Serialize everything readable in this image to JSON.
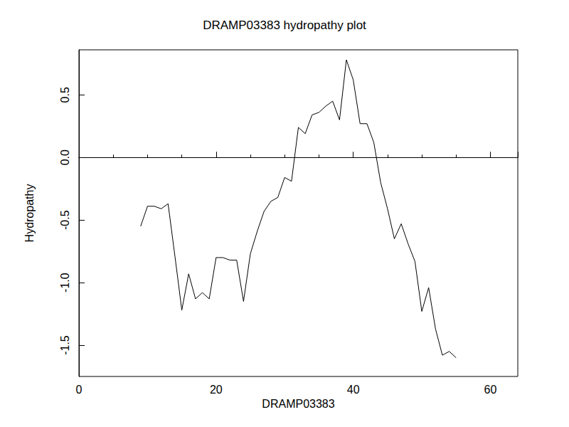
{
  "chart_data": {
    "type": "line",
    "title": "DRAMP03383 hydropathy plot",
    "x_label": "DRAMP03383",
    "y_label": "Hydropathy",
    "x": [
      9,
      10,
      11,
      12,
      13,
      14,
      15,
      16,
      17,
      18,
      19,
      20,
      21,
      22,
      23,
      24,
      25,
      26,
      27,
      28,
      29,
      30,
      31,
      32,
      33,
      34,
      35,
      36,
      37,
      38,
      39,
      40,
      41,
      42,
      43,
      44,
      45,
      46,
      47,
      48,
      49,
      50,
      51,
      52,
      53,
      54,
      55
    ],
    "values": [
      -0.55,
      -0.39,
      -0.39,
      -0.41,
      -0.37,
      -0.79,
      -1.22,
      -0.93,
      -1.13,
      -1.08,
      -1.13,
      -0.8,
      -0.8,
      -0.82,
      -0.82,
      -1.15,
      -0.77,
      -0.59,
      -0.43,
      -0.35,
      -0.32,
      -0.16,
      -0.19,
      0.24,
      0.19,
      0.34,
      0.36,
      0.41,
      0.45,
      0.3,
      0.78,
      0.62,
      0.27,
      0.27,
      0.12,
      -0.2,
      -0.41,
      -0.65,
      -0.53,
      -0.69,
      -0.83,
      -1.23,
      -1.04,
      -1.37,
      -1.58,
      -1.55,
      -1.6
    ],
    "color": "#000000",
    "xlim": [
      0,
      64
    ],
    "xticks": [
      0,
      20,
      40,
      60
    ],
    "ylim": [
      -1.75,
      0.86
    ],
    "yticks": [
      {
        "value": -1.5,
        "label": "-1.5"
      },
      {
        "value": -1,
        "label": "-1.0"
      },
      {
        "value": -0.5,
        "label": "-0.5"
      },
      {
        "value": 0,
        "label": "0.0"
      },
      {
        "value": 0.5,
        "label": "0.5"
      }
    ],
    "grid": false
  }
}
